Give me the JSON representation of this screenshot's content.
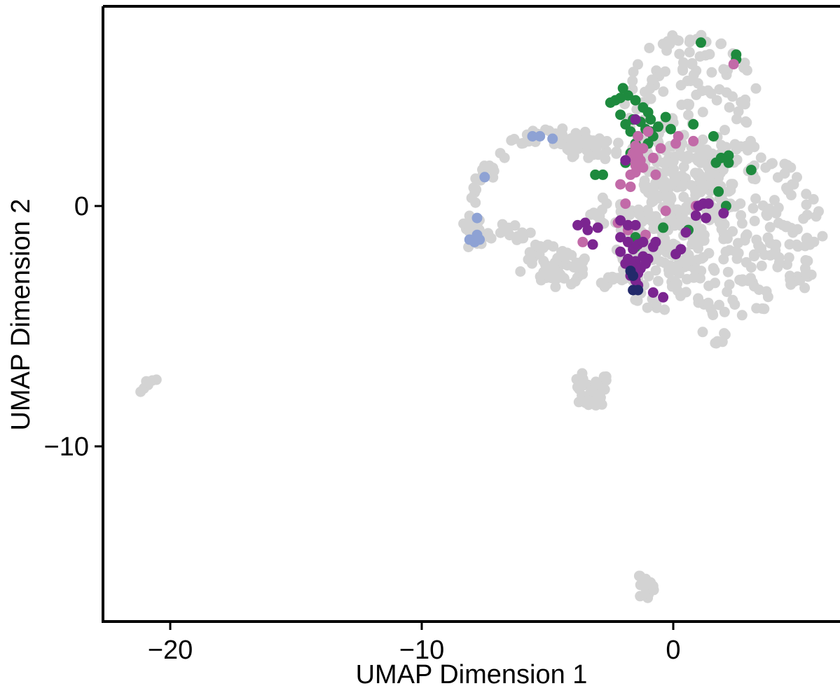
{
  "chart_data": {
    "type": "scatter",
    "title": "",
    "xlabel": "UMAP Dimension 1",
    "ylabel": "UMAP Dimension 2",
    "xlim": [
      -22.8,
      6.6
    ],
    "ylim": [
      -17.3,
      8.4
    ],
    "x_ticks": [
      -20,
      -10,
      0
    ],
    "y_ticks": [
      0,
      -10
    ],
    "x_tick_labels": [
      "−20",
      "−10",
      "0"
    ],
    "y_tick_labels": [
      "0",
      "−10"
    ],
    "grid": false,
    "legend": "none",
    "colors": {
      "background_cells": "#d3d3d3",
      "green": "#1e8a3e",
      "pink": "#c26aa8",
      "purple": "#7b2590",
      "light_blue": "#8ea2d4",
      "navy": "#22296a"
    },
    "background_regions": [
      {
        "cx": 0.7,
        "cy": 4.0,
        "rx": 2.7,
        "ry": 3.3,
        "n": 160
      },
      {
        "cx": 2.6,
        "cy": -1.0,
        "rx": 3.4,
        "ry": 3.8,
        "n": 220
      },
      {
        "cx": -0.6,
        "cy": -1.7,
        "rx": 1.8,
        "ry": 2.7,
        "n": 110
      },
      {
        "cx": 0.4,
        "cy": 0.3,
        "rx": 2.0,
        "ry": 1.8,
        "n": 90
      },
      {
        "cx": -3.2,
        "cy": 2.4,
        "rx": 1.2,
        "ry": 0.5,
        "n": 30
      },
      {
        "cx": -4.8,
        "cy": -2.5,
        "rx": 1.4,
        "ry": 0.9,
        "n": 50
      },
      {
        "cx": -3.2,
        "cy": -7.6,
        "rx": 0.8,
        "ry": 0.8,
        "n": 40
      },
      {
        "cx": -1.1,
        "cy": -15.8,
        "rx": 0.4,
        "ry": 0.6,
        "n": 14
      },
      {
        "cx": -2.6,
        "cy": -0.2,
        "rx": 0.9,
        "ry": 0.6,
        "n": 18
      }
    ],
    "background_paths": [
      {
        "points": [
          [
            -7.8,
            -1.5
          ],
          [
            -8.0,
            -1.0
          ],
          [
            -7.8,
            0.0
          ],
          [
            -7.6,
            1.0
          ],
          [
            -7.2,
            2.0
          ],
          [
            -6.4,
            2.7
          ],
          [
            -5.4,
            2.9
          ],
          [
            -4.5,
            2.9
          ],
          [
            -3.6,
            2.8
          ],
          [
            -2.8,
            2.6
          ]
        ],
        "n": 70,
        "spread": 0.35
      },
      {
        "points": [
          [
            -7.8,
            -1.3
          ],
          [
            -7.2,
            -1.2
          ],
          [
            -6.4,
            -1.0
          ],
          [
            -5.8,
            -1.4
          ],
          [
            -5.2,
            -2.2
          ],
          [
            -4.6,
            -2.9
          ]
        ],
        "n": 30,
        "spread": 0.3
      },
      {
        "points": [
          [
            -2.8,
            -3.2
          ],
          [
            -2.3,
            -3.0
          ],
          [
            -1.8,
            -2.8
          ]
        ],
        "n": 8,
        "spread": 0.2
      },
      {
        "points": [
          [
            -21.6,
            -7.9
          ],
          [
            -21.0,
            -7.5
          ],
          [
            -20.6,
            -7.1
          ]
        ],
        "n": 9,
        "spread": 0.12
      },
      {
        "points": [
          [
            1.2,
            -5.2
          ],
          [
            1.5,
            -5.8
          ],
          [
            1.9,
            -5.6
          ],
          [
            2.3,
            -5.0
          ]
        ],
        "n": 7,
        "spread": 0.1
      }
    ],
    "series": [
      {
        "name": "",
        "color": "#1e8a3e",
        "points": [
          [
            1.1,
            6.8
          ],
          [
            2.5,
            6.3
          ],
          [
            2.5,
            6.1
          ],
          [
            -2.0,
            4.9
          ],
          [
            -1.8,
            4.6
          ],
          [
            -2.1,
            4.5
          ],
          [
            -2.3,
            4.4
          ],
          [
            -1.5,
            4.4
          ],
          [
            -2.5,
            4.3
          ],
          [
            -1.2,
            4.1
          ],
          [
            -2.1,
            3.8
          ],
          [
            -1.0,
            3.9
          ],
          [
            -1.6,
            3.6
          ],
          [
            -1.3,
            3.5
          ],
          [
            -1.9,
            3.4
          ],
          [
            -0.9,
            3.6
          ],
          [
            -0.3,
            3.7
          ],
          [
            -0.6,
            3.3
          ],
          [
            -1.1,
            3.2
          ],
          [
            -1.7,
            3.1
          ],
          [
            -1.4,
            2.9
          ],
          [
            -0.8,
            2.9
          ],
          [
            -1.0,
            2.6
          ],
          [
            -1.5,
            2.6
          ],
          [
            -0.1,
            3.2
          ],
          [
            0.8,
            3.4
          ],
          [
            1.6,
            2.9
          ],
          [
            -0.9,
            3.1
          ],
          [
            -1.7,
            2.2
          ],
          [
            -1.9,
            1.8
          ],
          [
            -2.8,
            1.3
          ],
          [
            -3.1,
            1.3
          ],
          [
            1.7,
            1.8
          ],
          [
            2.2,
            2.1
          ],
          [
            1.9,
            2.0
          ],
          [
            2.2,
            1.8
          ],
          [
            3.1,
            1.5
          ],
          [
            1.8,
            0.6
          ],
          [
            2.1,
            0.0
          ],
          [
            -0.4,
            -0.9
          ],
          [
            0.6,
            -1.0
          ],
          [
            -1.5,
            -1.3
          ],
          [
            -1.5,
            -1.7
          ]
        ]
      },
      {
        "name": "",
        "color": "#c26aa8",
        "points": [
          [
            2.4,
            5.9
          ],
          [
            -1.0,
            3.1
          ],
          [
            -1.4,
            2.9
          ],
          [
            -1.5,
            2.5
          ],
          [
            -1.2,
            2.4
          ],
          [
            -1.6,
            2.2
          ],
          [
            -1.4,
            2.1
          ],
          [
            -1.7,
            2.0
          ],
          [
            -1.3,
            1.9
          ],
          [
            -1.5,
            1.7
          ],
          [
            -1.2,
            1.6
          ],
          [
            -1.5,
            1.4
          ],
          [
            -0.5,
            2.4
          ],
          [
            0.1,
            2.6
          ],
          [
            0.2,
            2.9
          ],
          [
            0.8,
            2.7
          ],
          [
            -0.8,
            2.0
          ],
          [
            -0.7,
            1.3
          ],
          [
            -1.7,
            1.3
          ],
          [
            -2.1,
            0.9
          ],
          [
            -1.7,
            0.8
          ],
          [
            -1.9,
            0.1
          ],
          [
            -0.3,
            -0.2
          ],
          [
            -3.6,
            -1.5
          ],
          [
            -2.2,
            -0.7
          ],
          [
            -1.8,
            -1.0
          ],
          [
            0.9,
            0.0
          ],
          [
            -1.1,
            -1.2
          ]
        ]
      },
      {
        "name": "",
        "color": "#7b2590",
        "points": [
          [
            -1.5,
            3.6
          ],
          [
            -1.9,
            1.9
          ],
          [
            -3.8,
            -0.8
          ],
          [
            -3.5,
            -0.7
          ],
          [
            -3.4,
            -1.0
          ],
          [
            -3.2,
            -1.6
          ],
          [
            -3.0,
            -0.9
          ],
          [
            -2.1,
            -0.6
          ],
          [
            -1.8,
            -0.8
          ],
          [
            -1.5,
            -0.8
          ],
          [
            -2.1,
            -1.3
          ],
          [
            -1.8,
            -1.5
          ],
          [
            -1.6,
            -1.8
          ],
          [
            -1.4,
            -1.6
          ],
          [
            -1.2,
            -1.5
          ],
          [
            -0.8,
            -1.7
          ],
          [
            -0.7,
            -1.5
          ],
          [
            -2.1,
            -1.9
          ],
          [
            -1.8,
            -2.2
          ],
          [
            -1.5,
            -2.3
          ],
          [
            -1.2,
            -2.1
          ],
          [
            -1.0,
            -2.2
          ],
          [
            -1.9,
            -2.4
          ],
          [
            -1.6,
            -2.5
          ],
          [
            -1.3,
            -2.6
          ],
          [
            -1.1,
            -2.4
          ],
          [
            -1.4,
            -2.8
          ],
          [
            -1.7,
            -2.9
          ],
          [
            -1.5,
            -3.1
          ],
          [
            -1.4,
            -3.3
          ],
          [
            -0.8,
            -3.6
          ],
          [
            -0.4,
            -3.8
          ],
          [
            0.1,
            -2.0
          ],
          [
            0.3,
            -1.8
          ],
          [
            0.5,
            -1.1
          ],
          [
            0.9,
            -0.4
          ],
          [
            1.0,
            0.0
          ],
          [
            1.2,
            0.1
          ],
          [
            1.4,
            0.1
          ],
          [
            1.3,
            -0.5
          ],
          [
            2.0,
            -0.3
          ]
        ]
      },
      {
        "name": "",
        "color": "#8ea2d4",
        "points": [
          [
            -5.6,
            2.9
          ],
          [
            -5.3,
            2.9
          ],
          [
            -4.8,
            2.8
          ],
          [
            -7.5,
            1.2
          ],
          [
            -7.8,
            -0.5
          ],
          [
            -8.1,
            -1.4
          ],
          [
            -7.9,
            -1.5
          ],
          [
            -7.8,
            -1.2
          ],
          [
            -7.7,
            -1.4
          ]
        ]
      },
      {
        "name": "",
        "color": "#22296a",
        "points": [
          [
            -1.7,
            -2.7
          ],
          [
            -1.6,
            -2.9
          ],
          [
            -1.6,
            -3.5
          ],
          [
            -1.4,
            -3.5
          ]
        ]
      }
    ]
  }
}
